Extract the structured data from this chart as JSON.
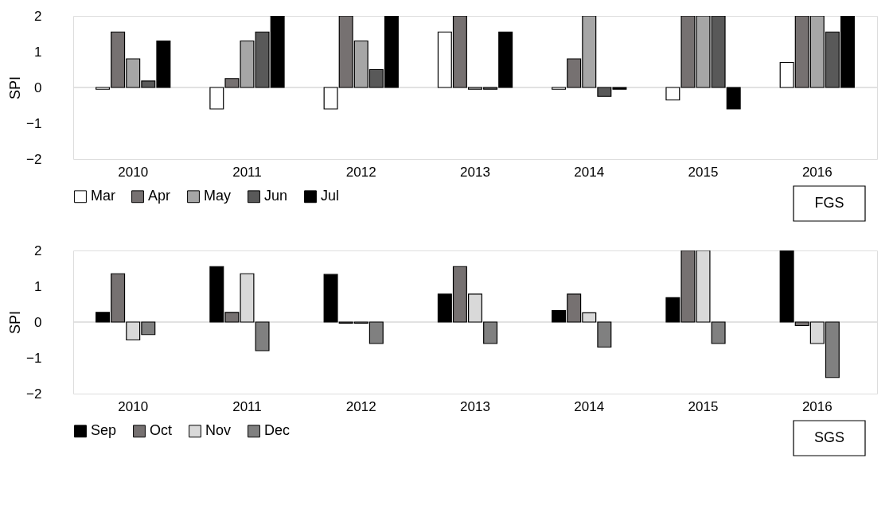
{
  "chart_data": [
    {
      "type": "bar",
      "ylabel": "SPI",
      "categories": [
        "2010",
        "2011",
        "2012",
        "2013",
        "2014",
        "2015",
        "2016"
      ],
      "series": [
        {
          "name": "Mar",
          "color": "#ffffff",
          "values": [
            -0.05,
            -0.6,
            -0.6,
            1.55,
            -0.05,
            -0.35,
            0.7
          ]
        },
        {
          "name": "Apr",
          "color": "#767171",
          "values": [
            1.55,
            0.25,
            2,
            2,
            0.8,
            2,
            2
          ]
        },
        {
          "name": "May",
          "color": "#a6a6a6",
          "values": [
            0.8,
            1.3,
            1.3,
            -0.05,
            2,
            2,
            2
          ]
        },
        {
          "name": "Jun",
          "color": "#595959",
          "values": [
            0.18,
            1.55,
            0.5,
            -0.05,
            -0.25,
            2,
            1.55
          ]
        },
        {
          "name": "Jul",
          "color": "#000000",
          "values": [
            1.3,
            2,
            2,
            1.55,
            -0.05,
            -0.6,
            2
          ]
        }
      ],
      "ylim": [
        -2,
        2
      ],
      "yticks": [
        -2,
        -1,
        0,
        1,
        2
      ],
      "grid": false,
      "legend": "bottom",
      "ref_lines": [
        {
          "axis": "y",
          "value": 0,
          "color": "#d9d9d9"
        }
      ],
      "annotations": [
        "FGS"
      ]
    },
    {
      "type": "bar",
      "ylabel": "SPI",
      "categories": [
        "2010",
        "2011",
        "2012",
        "2013",
        "2014",
        "2015",
        "2016"
      ],
      "series": [
        {
          "name": "Sep",
          "color": "#000000",
          "values": [
            0.27,
            1.55,
            1.33,
            0.78,
            0.32,
            0.68,
            2
          ]
        },
        {
          "name": "Oct",
          "color": "#767171",
          "values": [
            1.35,
            0.27,
            -0.03,
            1.55,
            0.78,
            2,
            -0.1
          ]
        },
        {
          "name": "Nov",
          "color": "#d9d9d9",
          "values": [
            -0.5,
            1.35,
            -0.03,
            0.78,
            0.26,
            2,
            -0.6
          ]
        },
        {
          "name": "Dec",
          "color": "#808080",
          "values": [
            -0.35,
            -0.8,
            -0.6,
            -0.6,
            -0.7,
            -0.6,
            -1.55
          ]
        }
      ],
      "ylim": [
        -2,
        2
      ],
      "yticks": [
        -2,
        -1,
        0,
        1,
        2
      ],
      "grid": false,
      "legend": "bottom",
      "ref_lines": [
        {
          "axis": "y",
          "value": 0,
          "color": "#d9d9d9"
        }
      ],
      "annotations": [
        "SGS"
      ]
    }
  ]
}
